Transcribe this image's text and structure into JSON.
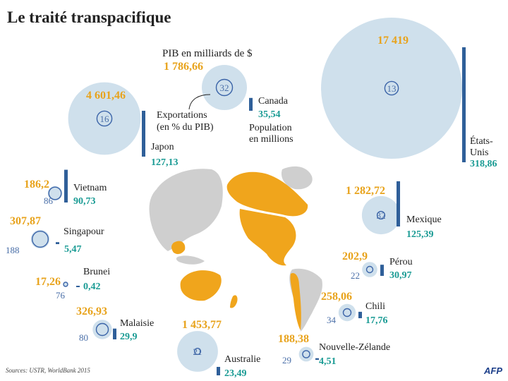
{
  "title": "Le traité transpacifique",
  "source": "Sources: USTR, WorldBank 2015",
  "brand": "AFP",
  "legend": {
    "gdp_label": "PIB  en milliards de $",
    "gdp_value": "1 786,66",
    "exports_line1": "Exportations",
    "exports_line2": "(en % du PIB)",
    "exports_value": "32",
    "population_line1": "Population",
    "population_line2": "en millions"
  },
  "colors": {
    "gdp_text": "#e8a31c",
    "population_text": "#1a9b94",
    "exports_text": "#4a6fa8",
    "bubble_fill": "#cfe0ec",
    "ring": "#3b64a8",
    "bar": "#2f5f99",
    "land_tpp": "#f0a51c",
    "land_other": "#cfcfcf",
    "title": "#222222"
  },
  "chart_data": {
    "type": "bubble",
    "encoding": {
      "bubble_area": "PIB en milliards de $",
      "inner_circle": "Exportations (en % du PIB)",
      "bar_height": "Population en millions"
    },
    "countries": [
      {
        "name": "États-Unis",
        "gdp": 17419,
        "gdp_label": "17 419",
        "exports_pct": 13,
        "population": 318.86,
        "pop_label": "318,86"
      },
      {
        "name": "Japon",
        "gdp": 4601.46,
        "gdp_label": "4 601,46",
        "exports_pct": 16,
        "population": 127.13,
        "pop_label": "127,13"
      },
      {
        "name": "Canada",
        "gdp": 1786.66,
        "gdp_label": "1 786,66",
        "exports_pct": 32,
        "population": 35.54,
        "pop_label": "35,54"
      },
      {
        "name": "Vietnam",
        "gdp": 186.2,
        "gdp_label": "186,2",
        "exports_pct": 86,
        "population": 90.73,
        "pop_label": "90,73"
      },
      {
        "name": "Singapour",
        "gdp": 307.87,
        "gdp_label": "307,87",
        "exports_pct": 188,
        "population": 5.47,
        "pop_label": "5,47"
      },
      {
        "name": "Brunei",
        "gdp": 17.26,
        "gdp_label": "17,26",
        "exports_pct": 76,
        "population": 0.42,
        "pop_label": "0,42"
      },
      {
        "name": "Malaisie",
        "gdp": 326.93,
        "gdp_label": "326,93",
        "exports_pct": 80,
        "population": 29.9,
        "pop_label": "29,9"
      },
      {
        "name": "Australie",
        "gdp": 1453.77,
        "gdp_label": "1 453,77",
        "exports_pct": 21,
        "population": 23.49,
        "pop_label": "23,49"
      },
      {
        "name": "Mexique",
        "gdp": 1282.72,
        "gdp_label": "1 282,72",
        "exports_pct": 32,
        "population": 125.39,
        "pop_label": "125,39"
      },
      {
        "name": "Pérou",
        "gdp": 202.9,
        "gdp_label": "202,9",
        "exports_pct": 22,
        "population": 30.97,
        "pop_label": "30,97"
      },
      {
        "name": "Chili",
        "gdp": 258.06,
        "gdp_label": "258,06",
        "exports_pct": 34,
        "population": 17.76,
        "pop_label": "17,76"
      },
      {
        "name": "Nouvelle-Zélande",
        "gdp": 188.38,
        "gdp_label": "188,38",
        "exports_pct": 29,
        "population": 4.51,
        "pop_label": "4,51"
      }
    ]
  }
}
